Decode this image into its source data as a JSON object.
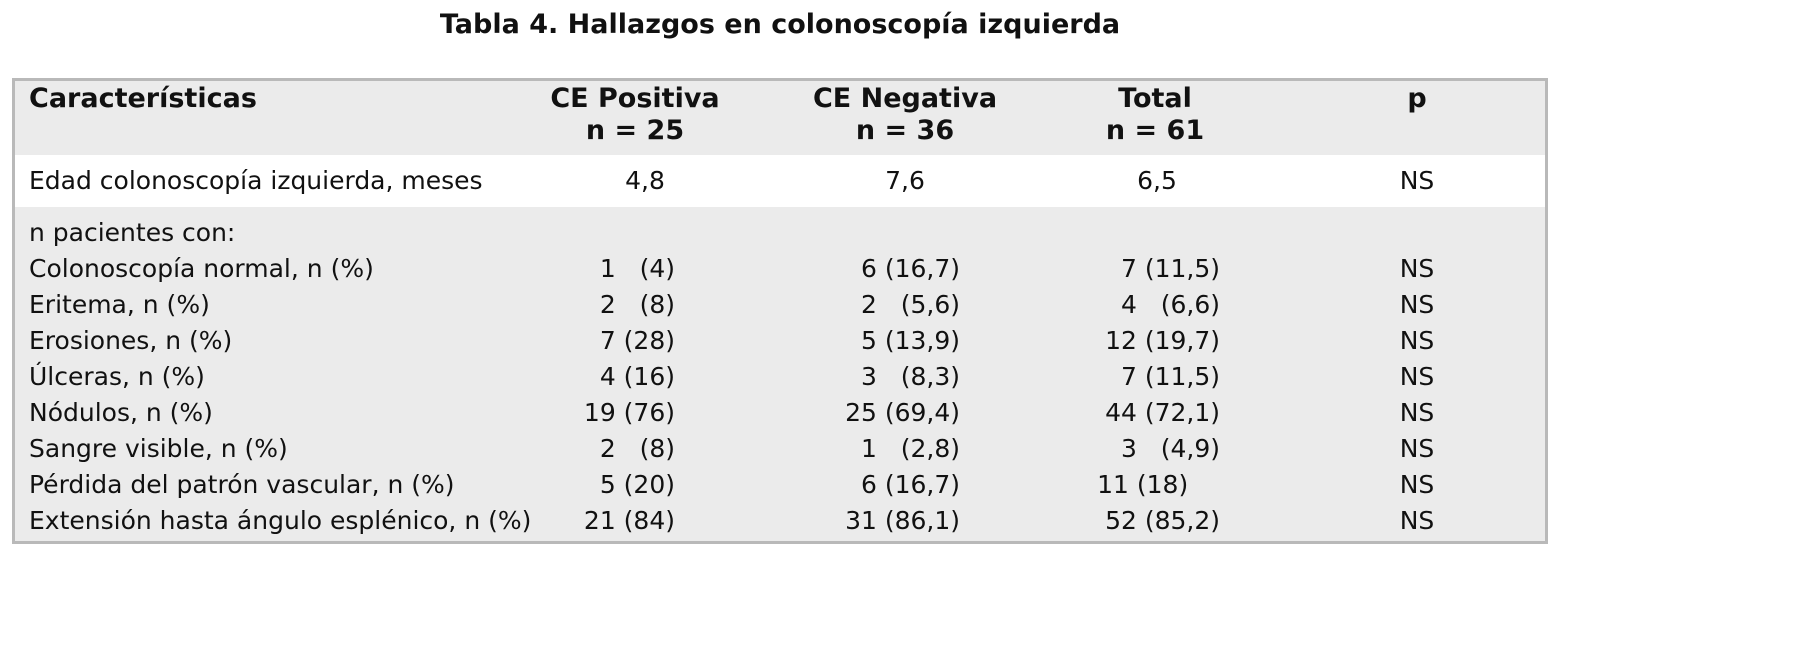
{
  "title": "Tabla 4. Hallazgos en colonoscopía izquierda",
  "headers": {
    "characteristics": "Características",
    "ce_pos": "CE Positiva",
    "ce_pos_n": "n = 25",
    "ce_neg": "CE Negativa",
    "ce_neg_n": "n = 36",
    "total": "Total",
    "total_n": "n = 61",
    "p": "p"
  },
  "age_row": {
    "label": "Edad colonoscopía izquierda, meses",
    "pos": "4,8",
    "neg": "7,6",
    "total": "6,5",
    "p": "NS"
  },
  "group_label": "n pacientes con:",
  "rows": [
    {
      "label": "Colonoscopía normal, n (%)",
      "pos": "1   (4)",
      "neg": "6 (16,7)",
      "total": "7 (11,5)",
      "p": "NS"
    },
    {
      "label": "Eritema, n (%)",
      "pos": "2   (8)",
      "neg": "2   (5,6)",
      "total": "4   (6,6)",
      "p": "NS"
    },
    {
      "label": "Erosiones, n (%)",
      "pos": "7 (28)",
      "neg": "5 (13,9)",
      "total": "12 (19,7)",
      "p": "NS"
    },
    {
      "label": "Úlceras, n (%)",
      "pos": "4 (16)",
      "neg": "3   (8,3)",
      "total": "7 (11,5)",
      "p": "NS"
    },
    {
      "label": "Nódulos, n (%)",
      "pos": "19 (76)",
      "neg": "25 (69,4)",
      "total": "44 (72,1)",
      "p": "NS"
    },
    {
      "label": "Sangre visible, n (%)",
      "pos": "2   (8)",
      "neg": "1   (2,8)",
      "total": "3   (4,9)",
      "p": "NS"
    },
    {
      "label": "Pérdida del patrón vascular, n (%)",
      "pos": "5 (20)",
      "neg": "6 (16,7)",
      "total": "11 (18)    ",
      "p": "NS"
    },
    {
      "label": "Extensión hasta ángulo esplénico, n (%)",
      "pos": "21 (84)",
      "neg": "31 (86,1)",
      "total": "52 (85,2)",
      "p": "NS"
    }
  ]
}
